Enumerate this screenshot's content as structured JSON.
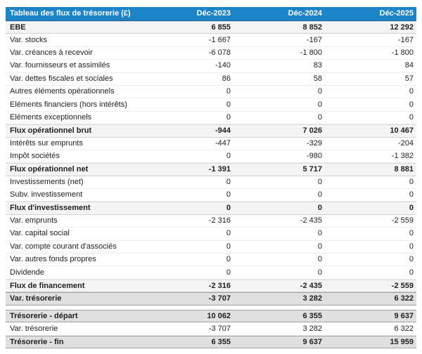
{
  "table": {
    "title": "Tableau des flux de trésorerie (£)",
    "columns": [
      "Déc-2023",
      "Déc-2024",
      "Déc-2025"
    ],
    "colors": {
      "header_bg": "#1e84c8",
      "header_text": "#ffffff",
      "subtotal_bg": "#f4f4f4",
      "total_bg": "#e0e0e0",
      "body_text": "#1f1f1f"
    },
    "rows": [
      {
        "label": "EBE",
        "values": [
          "6 855",
          "8 852",
          "12 292"
        ],
        "style": "subtotal"
      },
      {
        "label": "Var. stocks",
        "values": [
          "-1 667",
          "-167",
          "-167"
        ],
        "style": "normal"
      },
      {
        "label": "Var. créances à recevoir",
        "values": [
          "-6 078",
          "-1 800",
          "-1 800"
        ],
        "style": "normal"
      },
      {
        "label": "Var. fournisseurs et assimilés",
        "values": [
          "-140",
          "83",
          "84"
        ],
        "style": "normal"
      },
      {
        "label": "Var. dettes fiscales et sociales",
        "values": [
          "86",
          "58",
          "57"
        ],
        "style": "normal"
      },
      {
        "label": "Autres éléments opérationnels",
        "values": [
          "0",
          "0",
          "0"
        ],
        "style": "normal"
      },
      {
        "label": "Eléments financiers (hors intérêts)",
        "values": [
          "0",
          "0",
          "0"
        ],
        "style": "normal"
      },
      {
        "label": "Eléments exceptionnels",
        "values": [
          "0",
          "0",
          "0"
        ],
        "style": "normal"
      },
      {
        "label": "Flux opérationnel brut",
        "values": [
          "-944",
          "7 026",
          "10 467"
        ],
        "style": "subtotal"
      },
      {
        "label": "Intérêts sur emprunts",
        "values": [
          "-447",
          "-329",
          "-204"
        ],
        "style": "normal"
      },
      {
        "label": "Impôt sociétés",
        "values": [
          "0",
          "-980",
          "-1 382"
        ],
        "style": "normal"
      },
      {
        "label": "Flux opérationnel net",
        "values": [
          "-1 391",
          "5 717",
          "8 881"
        ],
        "style": "subtotal"
      },
      {
        "label": "Investissements (net)",
        "values": [
          "0",
          "0",
          "0"
        ],
        "style": "normal"
      },
      {
        "label": "Subv. investissement",
        "values": [
          "0",
          "0",
          "0"
        ],
        "style": "normal"
      },
      {
        "label": "Flux d'investissement",
        "values": [
          "0",
          "0",
          "0"
        ],
        "style": "subtotal"
      },
      {
        "label": "Var. emprunts",
        "values": [
          "-2 316",
          "-2 435",
          "-2 559"
        ],
        "style": "normal"
      },
      {
        "label": "Var. capital social",
        "values": [
          "0",
          "0",
          "0"
        ],
        "style": "normal"
      },
      {
        "label": "Var. compte courant d'associés",
        "values": [
          "0",
          "0",
          "0"
        ],
        "style": "normal"
      },
      {
        "label": "Var. autres fonds propres",
        "values": [
          "0",
          "0",
          "0"
        ],
        "style": "normal"
      },
      {
        "label": "Dividende",
        "values": [
          "0",
          "0",
          "0"
        ],
        "style": "normal"
      },
      {
        "label": "Flux de financement",
        "values": [
          "-2 316",
          "-2 435",
          "-2 559"
        ],
        "style": "subtotal"
      },
      {
        "label": "Var. trésorerie",
        "values": [
          "-3 707",
          "3 282",
          "6 322"
        ],
        "style": "total"
      },
      {
        "style": "spacer"
      },
      {
        "label": "Trésorerie - départ",
        "values": [
          "10 062",
          "6 355",
          "9 637"
        ],
        "style": "total"
      },
      {
        "label": "Var. trésorerie",
        "values": [
          "-3 707",
          "3 282",
          "6 322"
        ],
        "style": "normal"
      },
      {
        "label": "Trésorerie - fin",
        "values": [
          "6 355",
          "9 637",
          "15 959"
        ],
        "style": "total"
      }
    ]
  }
}
